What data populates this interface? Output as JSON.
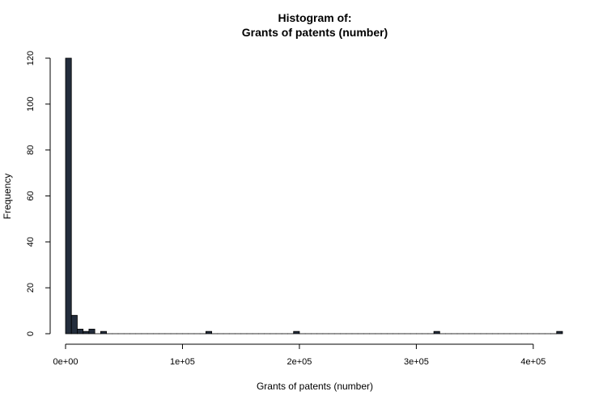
{
  "chart_data": {
    "type": "bar",
    "title_line1": "Histogram of:",
    "title_line2": "Grants of patents (number)",
    "xlabel": "Grants of patents (number)",
    "ylabel": "Frequency",
    "bin_width": 5000,
    "xlim": [
      0,
      425000
    ],
    "ylim": [
      0,
      120
    ],
    "x_ticks": [
      0,
      100000,
      200000,
      300000,
      400000
    ],
    "x_tick_labels": [
      "0e+00",
      "1e+05",
      "2e+05",
      "3e+05",
      "4e+05"
    ],
    "y_ticks": [
      0,
      20,
      40,
      60,
      80,
      100,
      120
    ],
    "y_tick_labels": [
      "0",
      "20",
      "40",
      "60",
      "80",
      "100",
      "120"
    ],
    "bar_color": "#232d3c",
    "bins": [
      {
        "start": 0,
        "count": 120
      },
      {
        "start": 5000,
        "count": 8
      },
      {
        "start": 10000,
        "count": 2
      },
      {
        "start": 15000,
        "count": 1
      },
      {
        "start": 20000,
        "count": 2
      },
      {
        "start": 30000,
        "count": 1
      },
      {
        "start": 120000,
        "count": 1
      },
      {
        "start": 195000,
        "count": 1
      },
      {
        "start": 315000,
        "count": 1
      },
      {
        "start": 420000,
        "count": 1
      }
    ]
  }
}
